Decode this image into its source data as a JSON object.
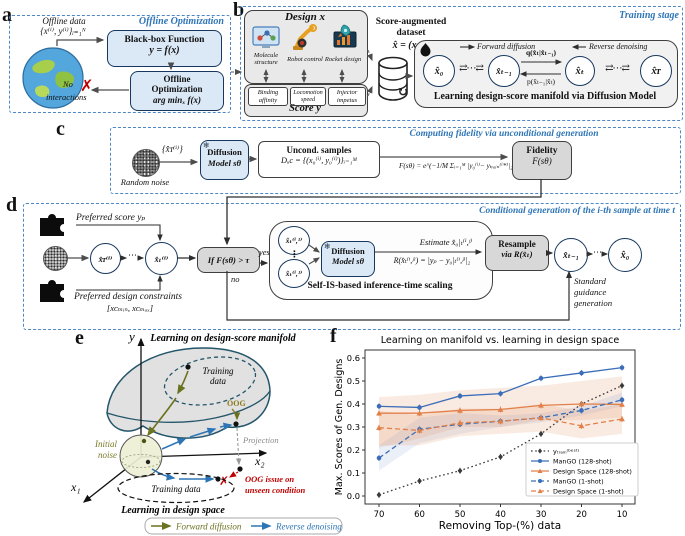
{
  "panel_a": {
    "label": "a",
    "title": "Offline Optimization",
    "offline_data_line1": "Offline data",
    "offline_data_line2": "{x⁽ⁱ⁾, y⁽ⁱ⁾}ᵢ₌₁ᴺ",
    "blackbox_line1": "Black-box Function",
    "blackbox_line2": "y = f(x)",
    "opt_line1": "Offline",
    "opt_line2": "Optimization",
    "opt_line3": "arg minₓ f(x)",
    "no_line1": "No",
    "no_line2": "interactions",
    "cross_glyph": "✗"
  },
  "panel_b": {
    "label": "b",
    "design_title": "Design x",
    "design_items": [
      {
        "label1": "Molecule",
        "label2": "structure"
      },
      {
        "label1": "Robot control",
        "label2": ""
      },
      {
        "label1": "Rocket design",
        "label2": ""
      }
    ],
    "score_title": "Score y",
    "score_items": [
      "Binding affinity",
      "Locomotion speed",
      "Injector impetus"
    ],
    "dataset_line1": "Score-augmented",
    "dataset_line2": "dataset",
    "dataset_line3": "x̂ = (x, y)",
    "refresh_glyph": "↻",
    "training": {
      "stage_title": "Training stage",
      "legend_forward": "Forward diffusion",
      "legend_reverse": "Reverse denoising",
      "node_x0": "x̂₀",
      "node_xtm1": "x̂ₜ₋₁",
      "node_xt": "x̂ₜ",
      "node_xT": "x̂ᴛ",
      "q_label": "q(x̂ₜ|x̂ₜ₋₁)",
      "p_label": "p(x̂ₜ₋₁|x̂ₜ)",
      "gap_glyph": "⇄⋯⇄",
      "caption": "Learning design-score manifold via Diffusion Model"
    }
  },
  "panel_c": {
    "label": "c",
    "title": "Computing fidelity via unconditional generation",
    "random_noise": "Random noise",
    "noise_set_label": "{x̂ᴛ⁽ⁱ⁾}",
    "model_line1": "Diffusion",
    "model_line2": "Model sθ",
    "frozen_glyph": "❄",
    "uncond_line1": "Uncond. samples",
    "uncond_line2": "Dᵤc = {(x₀⁽ⁱ⁾, y₀⁽ⁱ⁾)}ᵢ₌₁ᴹ",
    "fidelity_formula": "F(sθ) = e^(−1/M Σᵢ₌₁ᴹ |y₀⁽ⁱ⁾− yₜᵣₐᵢₙ⁽ⁱ*⁾|₂)",
    "fidelity_line1": "Fidelity",
    "fidelity_line2": "F(sθ)"
  },
  "panel_d": {
    "label": "d",
    "title": "Conditional generation of the i-th sample at time t",
    "preferred_score": "Preferred score yₚ",
    "preferred_constraints": "Preferred design constraints",
    "constraints_range": "[xᴄₘᵢₙ, xᴄₘₐₓ]",
    "node_xT": "x̂ᴛ⁽ⁱ⁾",
    "node_xt": "x̂ₜ⁽ⁱ⁾",
    "dots_h": "⋯",
    "dots_v": "⋮",
    "if_condition": "If F(sθ) > τ",
    "yes_label": "yes",
    "no_label": "no",
    "node_xt1": "x̂ₜ⁽ⁱ,¹⁾",
    "node_xtJ": "x̂ₜ⁽ⁱ,ᴶ⁾",
    "model_line1": "Diffusion",
    "model_line2": "Model sθ",
    "frozen_glyph": "❄",
    "estimate_label": "Estimate x̂₀|ₜ⁽ⁱ,ʲ⁾",
    "r_formula": "R(x̂ₜ⁽ⁱ,ʲ⁾) = |yₚ − y₀|ₜ⁽ⁱ,ʲ⁾|₂",
    "sis_caption": "Self-IS-based inference-time scaling",
    "resample_line1": "Resample",
    "resample_line2": "via R(x̂ₜ)",
    "node_xtm1": "x̂ₜ₋₁",
    "node_x0": "x̂₀",
    "standard_line1": "Standard",
    "standard_line2": "guidance",
    "standard_line3": "generation"
  },
  "panel_e": {
    "label": "e",
    "title": "Learning on design-score manifold",
    "axis_y": "y",
    "axis_x1": "x₁",
    "axis_x2": "x₂",
    "training_top_line1": "Training",
    "training_top_line2": "data",
    "oog_label": "OOG",
    "projection_label": "Projection",
    "initial_noise_line1": "Initial",
    "initial_noise_line2": "noise",
    "training_bottom": "Training data",
    "oog_issue_line1": "OOG issue on",
    "oog_issue_line2": "unseen condition",
    "bottom_title": "Learning in design space",
    "legend_forward": "Forward diffusion",
    "legend_reverse": "Reverse denoising",
    "cross_glyph": "✗"
  },
  "panel_f": {
    "label": "f",
    "chart_data": {
      "type": "line",
      "title": "Learning on manifold vs. learning in design space",
      "xlabel": "Removing Top-(%) data",
      "ylabel": "Max. Scores of Gen. Designs",
      "x_ticks": [
        "70",
        "60",
        "50",
        "40",
        "30",
        "20",
        "10"
      ],
      "y_ticks": [
        "0.0",
        "0.1",
        "0.2",
        "0.3",
        "0.4",
        "0.5",
        "0.6"
      ],
      "ylim": [
        0.0,
        0.6
      ],
      "grid": false,
      "legend_position": "lower right",
      "series": [
        {
          "name": "yₜᵣₐᵢₙ⁽ᵇᵉˢᵗ⁾",
          "color": "#3a3a3a",
          "style": "dotted",
          "marker": "diamond",
          "values": [
            0.005,
            0.065,
            0.11,
            0.17,
            0.27,
            0.4,
            0.48
          ]
        },
        {
          "name": "ManGO (128-shot)",
          "color": "#3b6db8",
          "style": "solid",
          "marker": "circle",
          "values": [
            0.39,
            0.385,
            0.435,
            0.445,
            0.512,
            0.535,
            0.558
          ]
        },
        {
          "name": "Design Space (128-shot)",
          "color": "#e2804a",
          "style": "solid",
          "marker": "triangle",
          "values": [
            0.36,
            0.36,
            0.372,
            0.376,
            0.394,
            0.4,
            0.398
          ],
          "band_lo": [
            0.21,
            0.25,
            0.3,
            0.3,
            0.33,
            0.33,
            0.34
          ],
          "band_hi": [
            0.43,
            0.44,
            0.46,
            0.47,
            0.48,
            0.5,
            0.52
          ]
        },
        {
          "name": "ManGO (1-shot)",
          "color": "#3b6db8",
          "style": "dashed",
          "marker": "circle",
          "values": [
            0.165,
            0.29,
            0.312,
            0.325,
            0.34,
            0.372,
            0.418
          ],
          "band_lo": [
            0.11,
            0.23,
            0.27,
            0.3,
            0.32,
            0.35,
            0.39
          ],
          "band_hi": [
            0.22,
            0.34,
            0.36,
            0.35,
            0.36,
            0.39,
            0.45
          ]
        },
        {
          "name": "Design Space (1-shot)",
          "color": "#e2804a",
          "style": "dashed",
          "marker": "triangle",
          "values": [
            0.297,
            0.285,
            0.318,
            0.325,
            0.34,
            0.305,
            0.335
          ],
          "band_lo": [
            0.22,
            0.22,
            0.26,
            0.27,
            0.28,
            0.25,
            0.27
          ],
          "band_hi": [
            0.37,
            0.35,
            0.38,
            0.38,
            0.4,
            0.37,
            0.4
          ]
        }
      ]
    }
  }
}
